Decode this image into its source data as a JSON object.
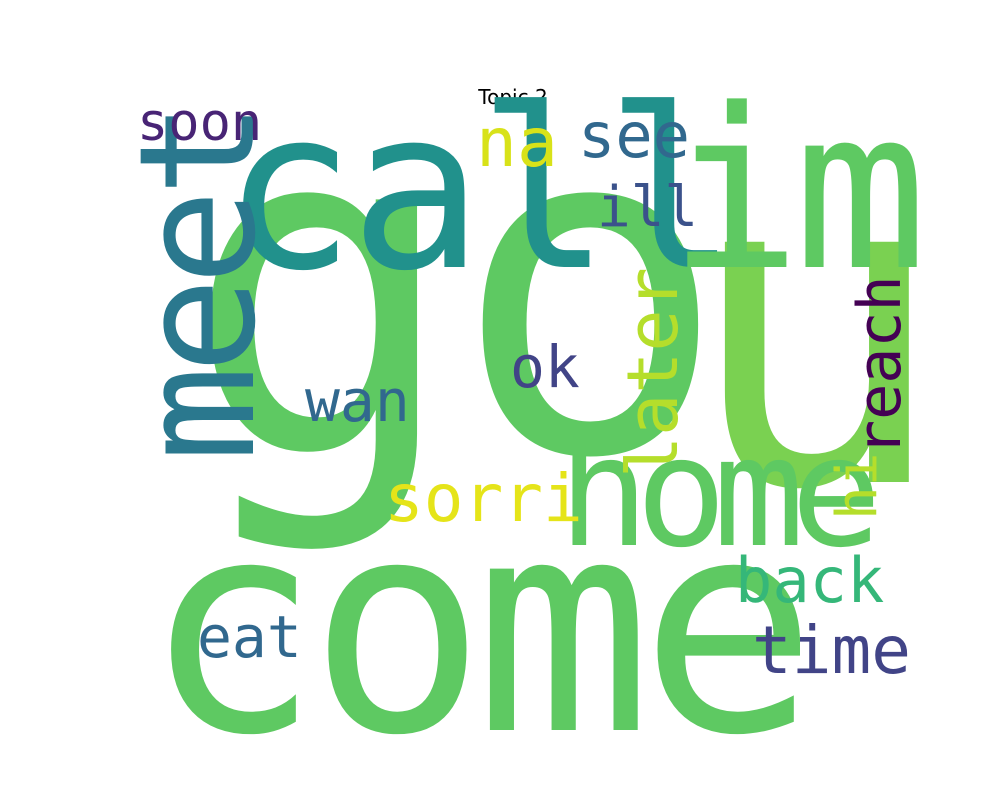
{
  "title": "Topic 2",
  "words": [
    {
      "text": "go",
      "color": "#5ec962",
      "orientation": "horizontal"
    },
    {
      "text": "u",
      "color": "#7ad151",
      "orientation": "horizontal"
    },
    {
      "text": "come",
      "color": "#5ec962",
      "orientation": "horizontal"
    },
    {
      "text": "call",
      "color": "#21918c",
      "orientation": "horizontal"
    },
    {
      "text": "im",
      "color": "#5ec962",
      "orientation": "horizontal"
    },
    {
      "text": "meet",
      "color": "#2a788e",
      "orientation": "vertical"
    },
    {
      "text": "home",
      "color": "#5ec962",
      "orientation": "horizontal"
    },
    {
      "text": "na",
      "color": "#d8e219",
      "orientation": "horizontal"
    },
    {
      "text": "see",
      "color": "#31688e",
      "orientation": "horizontal"
    },
    {
      "text": "soon",
      "color": "#482475",
      "orientation": "horizontal"
    },
    {
      "text": "ill",
      "color": "#3b528b",
      "orientation": "horizontal"
    },
    {
      "text": "later",
      "color": "#b5de2b",
      "orientation": "vertical"
    },
    {
      "text": "reach",
      "color": "#440154",
      "orientation": "vertical"
    },
    {
      "text": "ok",
      "color": "#414487",
      "orientation": "horizontal"
    },
    {
      "text": "wan",
      "color": "#31688e",
      "orientation": "horizontal"
    },
    {
      "text": "sorri",
      "color": "#e5e419",
      "orientation": "horizontal"
    },
    {
      "text": "hi",
      "color": "#b5de2b",
      "orientation": "vertical"
    },
    {
      "text": "back",
      "color": "#35b779",
      "orientation": "horizontal"
    },
    {
      "text": "eat",
      "color": "#31688e",
      "orientation": "horizontal"
    },
    {
      "text": "time",
      "color": "#414487",
      "orientation": "horizontal"
    }
  ]
}
